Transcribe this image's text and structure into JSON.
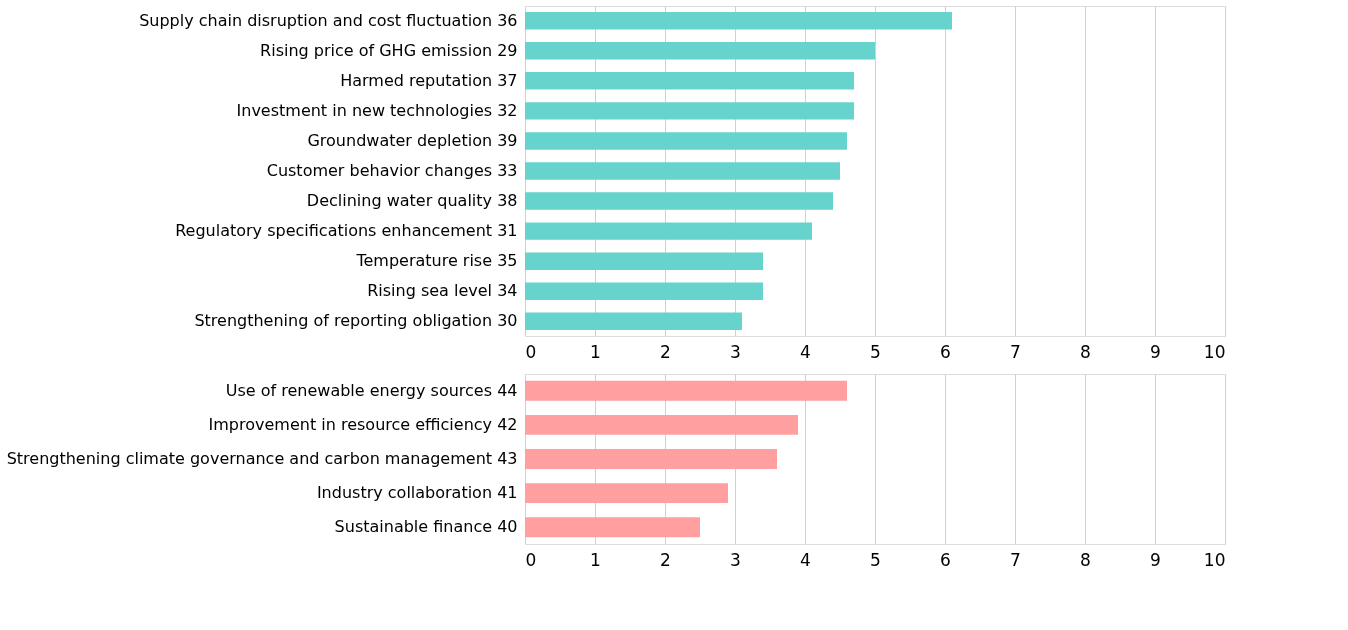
{
  "chart_data": [
    {
      "type": "bar",
      "orientation": "horizontal",
      "categories": [
        "Supply chain disruption and cost fluctuation 36",
        "Rising price of GHG emission 29",
        "Harmed reputation 37",
        "Investment in new technologies 32",
        "Groundwater depletion 39",
        "Customer behavior changes 33",
        "Declining water quality 38",
        "Regulatory specifications enhancement 31",
        "Temperature rise 35",
        "Rising sea level 34",
        "Strengthening of reporting obligation 30"
      ],
      "values": [
        6.1,
        5.0,
        4.7,
        4.7,
        4.6,
        4.5,
        4.4,
        4.1,
        3.4,
        3.4,
        3.1
      ],
      "color": "#66d3cc",
      "xlim": [
        0,
        10
      ],
      "xticks": [
        0,
        1,
        2,
        3,
        4,
        5,
        6,
        7,
        8,
        9,
        10
      ],
      "grid": "x"
    },
    {
      "type": "bar",
      "orientation": "horizontal",
      "categories": [
        "Use of renewable energy sources 44",
        "Improvement in resource efficiency 42",
        "Strengthening climate governance and carbon management 43",
        "Industry collaboration 41",
        "Sustainable finance 40"
      ],
      "values": [
        4.6,
        3.9,
        3.6,
        2.9,
        2.5
      ],
      "color": "#ff9f9f",
      "xlim": [
        0,
        10
      ],
      "xticks": [
        0,
        1,
        2,
        3,
        4,
        5,
        6,
        7,
        8,
        9,
        10
      ],
      "grid": "x"
    }
  ]
}
